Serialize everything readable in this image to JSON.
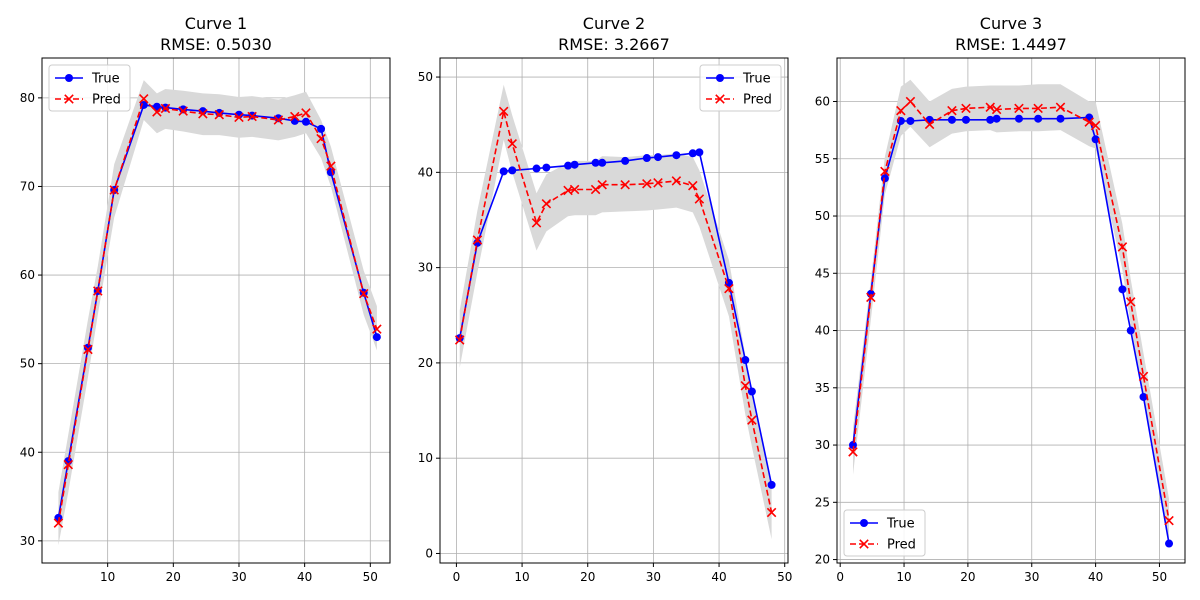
{
  "colors": {
    "true": "#0000ff",
    "pred": "#ff0000",
    "band": "#d9d9d9",
    "grid": "#b0b0b0"
  },
  "chart_data": [
    {
      "type": "line",
      "title": "Curve 1",
      "subtitle": "RMSE: 0.5030",
      "xlim": [
        0,
        53
      ],
      "ylim": [
        27.5,
        84.5
      ],
      "xticks": [
        10,
        20,
        30,
        40,
        50
      ],
      "yticks": [
        30,
        40,
        50,
        60,
        70,
        80
      ],
      "grid": true,
      "legend_position": "upper-left",
      "legend": [
        "True",
        "Pred"
      ],
      "series": [
        {
          "name": "True",
          "style": "solid-circle",
          "x": [
            2.5,
            4,
            7,
            8.5,
            11,
            15.5,
            17.5,
            18.8,
            21.5,
            24.5,
            27,
            30,
            32,
            36,
            38.5,
            40.2,
            42.5,
            44,
            49,
            51
          ],
          "y": [
            32.6,
            39,
            51.8,
            58.2,
            69.6,
            79.2,
            79.0,
            78.9,
            78.7,
            78.5,
            78.3,
            78.1,
            78.0,
            77.7,
            77.4,
            77.3,
            76.5,
            71.6,
            58.0,
            53.0
          ]
        },
        {
          "name": "Pred",
          "style": "dashed-x",
          "x": [
            2.5,
            4,
            7,
            8.5,
            11,
            15.5,
            17.5,
            18.8,
            21.5,
            24.5,
            27,
            30,
            32,
            36,
            38.5,
            40.2,
            42.5,
            44,
            49,
            51
          ],
          "y": [
            32.0,
            38.6,
            51.6,
            58.2,
            69.6,
            79.9,
            78.4,
            78.8,
            78.5,
            78.2,
            78.1,
            77.8,
            77.9,
            77.5,
            77.9,
            78.3,
            75.4,
            72.3,
            57.9,
            53.9
          ]
        }
      ],
      "band": {
        "x": [
          2.5,
          4,
          7,
          8.5,
          11,
          15.5,
          17.5,
          18.8,
          21.5,
          24.5,
          27,
          30,
          32,
          36,
          38.5,
          40.2,
          42.5,
          44,
          49,
          51
        ],
        "upper": [
          35.5,
          42,
          55,
          61,
          72.5,
          82,
          80.5,
          81,
          80.8,
          80.5,
          80.4,
          80.1,
          80.2,
          79.8,
          80.3,
          80.7,
          77.5,
          74.5,
          60.5,
          56.5
        ],
        "lower": [
          29.5,
          35.5,
          48.5,
          55.5,
          66.5,
          77.5,
          76,
          76.5,
          76.2,
          75.8,
          75.8,
          75.5,
          75.6,
          75.2,
          75.6,
          76,
          73.2,
          70,
          55.5,
          51.5
        ]
      }
    },
    {
      "type": "line",
      "title": "Curve 2",
      "subtitle": "RMSE: 3.2667",
      "xlim": [
        -2.5,
        50.5
      ],
      "ylim": [
        -1,
        52
      ],
      "xticks": [
        0,
        10,
        20,
        30,
        40,
        50
      ],
      "yticks": [
        0,
        10,
        20,
        30,
        40,
        50
      ],
      "grid": true,
      "legend_position": "upper-right",
      "legend": [
        "True",
        "Pred"
      ],
      "series": [
        {
          "name": "True",
          "style": "solid-circle",
          "x": [
            0.5,
            3.2,
            7.2,
            8.5,
            12.2,
            13.7,
            17,
            18,
            21.2,
            22.2,
            25.7,
            29,
            30.7,
            33.5,
            36,
            37,
            41.5,
            44,
            45,
            48
          ],
          "y": [
            22.6,
            32.6,
            40.1,
            40.2,
            40.4,
            40.5,
            40.7,
            40.8,
            41.0,
            41.0,
            41.2,
            41.5,
            41.6,
            41.8,
            42.0,
            42.1,
            28.4,
            20.3,
            17.0,
            7.2
          ]
        },
        {
          "name": "Pred",
          "style": "dashed-x",
          "x": [
            0.5,
            3.2,
            7.2,
            8.5,
            12.2,
            13.7,
            17,
            18,
            21.2,
            22.2,
            25.7,
            29,
            30.7,
            33.5,
            36,
            37,
            41.5,
            44,
            45,
            48
          ],
          "y": [
            22.4,
            32.9,
            46.4,
            43.0,
            34.7,
            36.7,
            38.1,
            38.2,
            38.2,
            38.7,
            38.7,
            38.8,
            38.9,
            39.1,
            38.6,
            37.2,
            27.8,
            17.6,
            14.0,
            4.3
          ]
        }
      ],
      "band": {
        "x": [
          0.5,
          3.2,
          7.2,
          8.5,
          12.2,
          13.7,
          17,
          18,
          21.2,
          22.2,
          25.7,
          29,
          30.7,
          33.5,
          36,
          37,
          41.5,
          44,
          45,
          48
        ],
        "upper": [
          25.5,
          36,
          49.2,
          46,
          37.8,
          39.8,
          41,
          41.2,
          41.2,
          41.7,
          41.6,
          41.8,
          41.8,
          42,
          41.6,
          40.2,
          30.8,
          20.8,
          17,
          7.4
        ],
        "lower": [
          19.5,
          29.5,
          43.4,
          40,
          31.8,
          33.8,
          35.4,
          35.5,
          35.5,
          35.8,
          35.9,
          36,
          36.1,
          36.3,
          35.8,
          34.3,
          24.9,
          14.6,
          11.2,
          1.5
        ]
      }
    },
    {
      "type": "line",
      "title": "Curve 3",
      "subtitle": "RMSE: 1.4497",
      "xlim": [
        -0.5,
        54
      ],
      "ylim": [
        19.7,
        63.8
      ],
      "xticks": [
        0,
        10,
        20,
        30,
        40,
        50
      ],
      "yticks": [
        20,
        25,
        30,
        35,
        40,
        45,
        50,
        55,
        60
      ],
      "grid": true,
      "legend_position": "lower-left",
      "legend": [
        "True",
        "Pred"
      ],
      "series": [
        {
          "name": "True",
          "style": "solid-circle",
          "x": [
            2,
            4.8,
            7,
            9.5,
            11,
            14,
            17.5,
            19.7,
            23.5,
            24.5,
            28,
            31,
            34.5,
            39,
            40,
            44.2,
            45.5,
            47.5,
            51.5
          ],
          "y": [
            30.0,
            43.2,
            53.3,
            58.3,
            58.3,
            58.4,
            58.4,
            58.4,
            58.4,
            58.5,
            58.5,
            58.5,
            58.5,
            58.6,
            56.7,
            43.6,
            40.0,
            34.2,
            21.4
          ]
        },
        {
          "name": "Pred",
          "style": "dashed-x",
          "x": [
            2,
            4.8,
            7,
            9.5,
            11,
            14,
            17.5,
            19.7,
            23.5,
            24.5,
            28,
            31,
            34.5,
            39,
            40,
            44.2,
            45.5,
            47.5,
            51.5
          ],
          "y": [
            29.4,
            42.9,
            53.9,
            59.2,
            60.0,
            58.0,
            59.2,
            59.4,
            59.5,
            59.3,
            59.4,
            59.4,
            59.5,
            58.2,
            57.9,
            47.3,
            42.5,
            36.0,
            23.4
          ]
        }
      ],
      "band": {
        "x": [
          2,
          4.8,
          7,
          9.5,
          11,
          14,
          17.5,
          19.7,
          23.5,
          24.5,
          28,
          31,
          34.5,
          39,
          40,
          44.2,
          45.5,
          47.5,
          51.5
        ],
        "upper": [
          31.5,
          44.4,
          55.2,
          61.3,
          61.9,
          60.0,
          61.1,
          61.3,
          61.4,
          61.4,
          61.4,
          61.5,
          61.5,
          60.0,
          60.0,
          49.3,
          44.5,
          38.0,
          25.3
        ],
        "lower": [
          27.4,
          40.9,
          51.9,
          57.0,
          57.8,
          56.0,
          57.2,
          57.4,
          57.5,
          57.3,
          57.4,
          57.4,
          57.5,
          56.1,
          55.9,
          45.3,
          40.5,
          34.0,
          21.5
        ]
      }
    }
  ]
}
